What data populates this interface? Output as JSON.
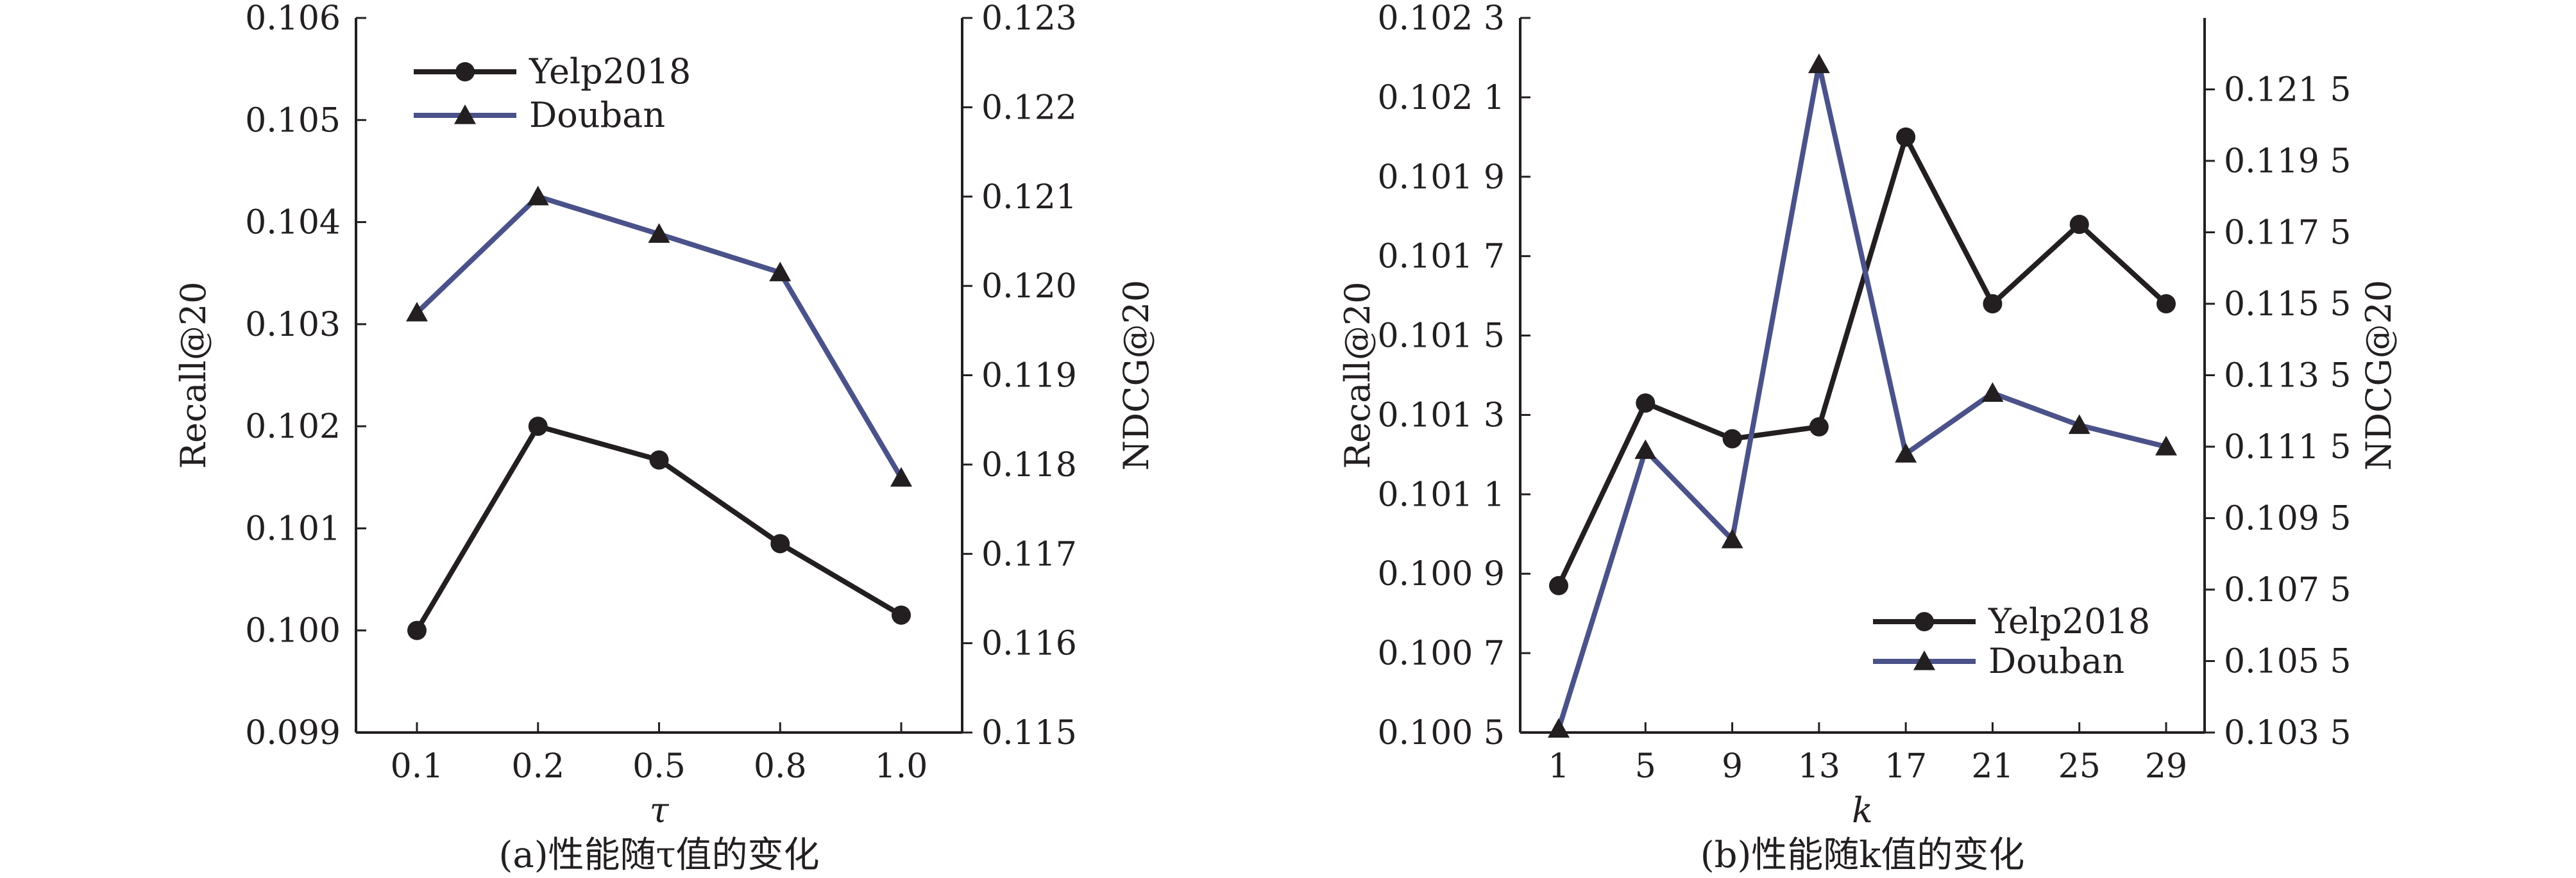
{
  "colors": {
    "yelp": "#231f20",
    "douban": "#4a5289",
    "axis": "#231f20"
  },
  "chart_data": [
    {
      "type": "line",
      "caption": "(a)性能随τ值的变化",
      "xlabel": "τ",
      "ylabel_left": "Recall@20",
      "ylabel_right": "NDCG@20",
      "categories": [
        "0.1",
        "0.2",
        "0.5",
        "0.8",
        "1.0"
      ],
      "ylim_left": [
        0.099,
        0.106
      ],
      "ylim_right": [
        0.115,
        0.123
      ],
      "yticks_left": [
        "0.099",
        "0.100",
        "0.101",
        "0.102",
        "0.103",
        "0.104",
        "0.105",
        "0.106"
      ],
      "yticks_right": [
        "0.115",
        "0.116",
        "0.117",
        "0.118",
        "0.119",
        "0.120",
        "0.121",
        "0.122",
        "0.123"
      ],
      "legend_position": "top-left",
      "series": [
        {
          "name": "Yelp2018",
          "axis": "left",
          "marker": "circle",
          "values": [
            0.1,
            0.102,
            0.10167,
            0.10085,
            0.10015
          ]
        },
        {
          "name": "Douban",
          "axis": "right",
          "marker": "triangle",
          "values": [
            0.1197,
            0.121,
            0.12058,
            0.12015,
            0.11785
          ]
        }
      ]
    },
    {
      "type": "line",
      "caption": "(b)性能随k值的变化",
      "xlabel": "k",
      "ylabel_left": "Recall@20",
      "ylabel_right": "NDCG@20",
      "categories": [
        "1",
        "5",
        "9",
        "13",
        "17",
        "21",
        "25",
        "29"
      ],
      "ylim_left": [
        0.1005,
        0.1023
      ],
      "ylim_right": [
        0.1035,
        0.1235
      ],
      "yticks_left": [
        "0.100 5",
        "0.100 7",
        "0.100 9",
        "0.101 1",
        "0.101 3",
        "0.101 5",
        "0.101 7",
        "0.101 9",
        "0.102 1",
        "0.102 3"
      ],
      "yticks_right": [
        "0.103 5",
        "0.105 5",
        "0.107 5",
        "0.109 5",
        "0.111 5",
        "0.113 5",
        "0.115 5",
        "0.117 5",
        "0.119 5",
        "0.121 5"
      ],
      "legend_position": "bottom-right",
      "series": [
        {
          "name": "Yelp2018",
          "axis": "left",
          "marker": "circle",
          "values": [
            0.10087,
            0.10133,
            0.10124,
            0.10127,
            0.102,
            0.10158,
            0.10178,
            0.10158
          ]
        },
        {
          "name": "Douban",
          "axis": "right",
          "marker": "triangle",
          "values": [
            0.1036,
            0.1114,
            0.1089,
            0.1222,
            0.1113,
            0.113,
            0.1121,
            0.1115
          ]
        }
      ]
    }
  ]
}
